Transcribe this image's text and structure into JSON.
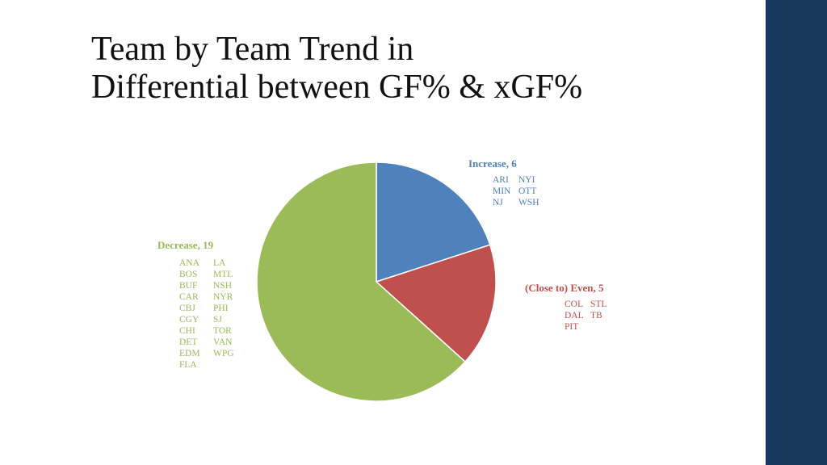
{
  "slide": {
    "title_lines": [
      "Team by Team Trend in",
      "Differential between GF% & xGF%"
    ],
    "accent_bar_color": "#17375e"
  },
  "chart_data": {
    "type": "pie",
    "slices": [
      {
        "label": "Increase",
        "value": 6,
        "color": "#4f81bd",
        "teams": [
          "ARI",
          "NYI",
          "MIN",
          "OTT",
          "NJ",
          "WSH"
        ]
      },
      {
        "label": "(Close to) Even",
        "value": 5,
        "color": "#c0504d",
        "teams": [
          "COL",
          "STL",
          "DAL",
          "TB",
          "PIT"
        ]
      },
      {
        "label": "Decrease",
        "value": 19,
        "color": "#9bbb59",
        "teams": [
          "ANA",
          "LA",
          "BOS",
          "MTL",
          "BUF",
          "NSH",
          "CAR",
          "NYR",
          "CBJ",
          "PHI",
          "CGY",
          "SJ",
          "CHI",
          "TOR",
          "DET",
          "VAN",
          "EDM",
          "WPG",
          "FLA"
        ]
      }
    ]
  }
}
